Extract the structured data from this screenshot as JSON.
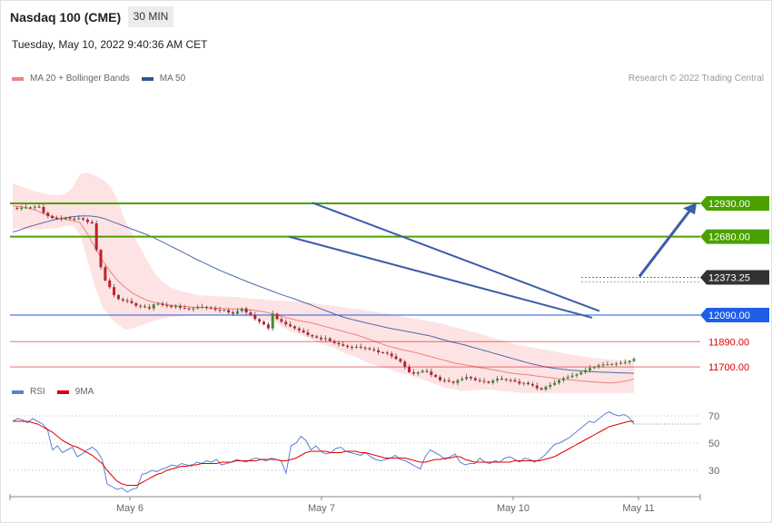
{
  "header": {
    "title": "Nasdaq 100 (CME)",
    "timeframe": "30 MIN",
    "datetime": "Tuesday, May 10, 2022 9:40:36 AM CET",
    "credit": "Research © 2022 Trading Central"
  },
  "legend_main": [
    {
      "label": "MA 20 + Bollinger Bands",
      "color": "#f08080"
    },
    {
      "label": "MA 50",
      "color": "#2f5597"
    }
  ],
  "legend_rsi": [
    {
      "label": "RSI",
      "color": "#5b7fd6"
    },
    {
      "label": "9MA",
      "color": "#e00000"
    }
  ],
  "chart_data": {
    "type": "candlestick",
    "price_range": [
      11580,
      12980
    ],
    "x_ticks": [
      "May 6",
      "May 7",
      "May 10",
      "May 11"
    ],
    "levels": [
      {
        "value": 12930.0,
        "label": "12930.00",
        "kind": "resistance",
        "color": "#4aa100"
      },
      {
        "value": 12680.0,
        "label": "12680.00",
        "kind": "resistance",
        "color": "#4aa100"
      },
      {
        "value": 12373.25,
        "label": "12373.25",
        "kind": "last",
        "color": "#333333"
      },
      {
        "value": 12090.0,
        "label": "12090.00",
        "kind": "pivot",
        "color": "#1e5ee8"
      },
      {
        "value": 11890.0,
        "label": "11890.00",
        "kind": "support",
        "color": "#e00000"
      },
      {
        "value": 11700.0,
        "label": "11700.00",
        "kind": "support",
        "color": "#e00000"
      }
    ],
    "closes": [
      12895,
      12892,
      12896,
      12900,
      12898,
      12905,
      12903,
      12860,
      12835,
      12820,
      12818,
      12812,
      12822,
      12815,
      12812,
      12818,
      12808,
      12790,
      12780,
      12580,
      12450,
      12350,
      12300,
      12240,
      12210,
      12200,
      12195,
      12180,
      12160,
      12155,
      12150,
      12140,
      12170,
      12175,
      12165,
      12160,
      12150,
      12158,
      12145,
      12140,
      12135,
      12140,
      12150,
      12152,
      12145,
      12140,
      12130,
      12125,
      12128,
      12110,
      12100,
      12120,
      12140,
      12110,
      12092,
      12060,
      12040,
      12020,
      11990,
      12100,
      12060,
      12040,
      12020,
      12005,
      11990,
      11975,
      11960,
      11940,
      11930,
      11920,
      11908,
      11915,
      11895,
      11880,
      11870,
      11860,
      11850,
      11845,
      11852,
      11846,
      11840,
      11832,
      11825,
      11810,
      11808,
      11800,
      11780,
      11760,
      11740,
      11700,
      11660,
      11650,
      11660,
      11670,
      11665,
      11640,
      11625,
      11600,
      11598,
      11590,
      11580,
      11600,
      11610,
      11625,
      11615,
      11600,
      11595,
      11590,
      11580,
      11598,
      11612,
      11608,
      11602,
      11600,
      11590,
      11575,
      11580,
      11570,
      11560,
      11540,
      11530,
      11550,
      11565,
      11580,
      11600,
      11615,
      11625,
      11635,
      11645,
      11660,
      11675,
      11692,
      11700,
      11712,
      11718,
      11720,
      11722,
      11725,
      11730,
      11735,
      11745,
      11760
    ],
    "ma20": [
      12910,
      12905,
      12895,
      12880,
      12855,
      12835,
      12820,
      12810,
      12800,
      12785,
      12700,
      12600,
      12500,
      12420,
      12350,
      12300,
      12255,
      12225,
      12200,
      12185,
      12175,
      12165,
      12160,
      12155,
      12150,
      12148,
      12145,
      12143,
      12140,
      12138,
      12135,
      12130,
      12128,
      12120,
      12110,
      12095,
      12080,
      12065,
      12050,
      12040,
      12030,
      12015,
      12000,
      11985,
      11970,
      11955,
      11940,
      11920,
      11900,
      11880,
      11860,
      11845,
      11830,
      11818,
      11805,
      11790,
      11775,
      11760,
      11745,
      11730,
      11720,
      11710,
      11700,
      11690,
      11680,
      11670,
      11660,
      11650,
      11645,
      11640,
      11632,
      11625,
      11618,
      11610,
      11605,
      11600,
      11595,
      11590,
      11585,
      11582,
      11580,
      11585,
      11595,
      11610
    ],
    "bb_upper": [
      13080,
      13060,
      13040,
      13020,
      13005,
      12995,
      12990,
      13000,
      13050,
      13150,
      13160,
      13140,
      13110,
      13060,
      12960,
      12800,
      12700,
      12600,
      12500,
      12400,
      12340,
      12300,
      12280,
      12262,
      12250,
      12240,
      12235,
      12232,
      12230,
      12228,
      12226,
      12220,
      12215,
      12210,
      12205,
      12200,
      12200,
      12195,
      12190,
      12185,
      12180,
      12170,
      12165,
      12160,
      12150,
      12140,
      12135,
      12125,
      12118,
      12110,
      12100,
      12090,
      12080,
      12070,
      12060,
      12050,
      12040,
      12030,
      12015,
      12000,
      11985,
      11970,
      11955,
      11940,
      11920,
      11905,
      11890,
      11875,
      11860,
      11850,
      11840,
      11830,
      11820,
      11810,
      11800,
      11790,
      11780,
      11770,
      11765,
      11760,
      11755,
      11752,
      11750,
      11748
    ],
    "bb_lower": [
      12740,
      12738,
      12736,
      12735,
      12736,
      12738,
      12745,
      12760,
      12760,
      12700,
      12500,
      12300,
      12150,
      12070,
      12020,
      11980,
      11990,
      12010,
      12030,
      12050,
      12065,
      12075,
      12080,
      12085,
      12088,
      12090,
      12092,
      12090,
      12088,
      12085,
      12080,
      12075,
      12070,
      12060,
      12050,
      12040,
      12000,
      11970,
      11950,
      11930,
      11910,
      11880,
      11860,
      11840,
      11810,
      11790,
      11770,
      11740,
      11720,
      11700,
      11690,
      11670,
      11650,
      11640,
      11620,
      11600,
      11580,
      11560,
      11540,
      11530,
      11520,
      11520,
      11525,
      11530,
      11528,
      11520,
      11515,
      11510,
      11505,
      11505,
      11505,
      11505,
      11505,
      11505,
      11505,
      11505,
      11505,
      11505,
      11505,
      11505,
      11505,
      11505,
      11505,
      11505
    ],
    "ma50": [
      12715,
      12730,
      12750,
      12765,
      12780,
      12795,
      12808,
      12818,
      12826,
      12832,
      12836,
      12835,
      12828,
      12815,
      12795,
      12775,
      12755,
      12735,
      12715,
      12695,
      12672,
      12645,
      12618,
      12592,
      12565,
      12538,
      12510,
      12485,
      12460,
      12435,
      12412,
      12390,
      12368,
      12346,
      12325,
      12305,
      12285,
      12265,
      12245,
      12228,
      12210,
      12190,
      12172,
      12150,
      12130,
      12110,
      12090,
      12072,
      12058,
      12045,
      12032,
      12020,
      12008,
      11995,
      11985,
      11975,
      11965,
      11955,
      11945,
      11935,
      11920,
      11905,
      11890,
      11878,
      11865,
      11850,
      11835,
      11820,
      11805,
      11790,
      11775,
      11760,
      11745,
      11730,
      11718,
      11705,
      11695,
      11688,
      11682,
      11676,
      11672,
      11668,
      11665,
      11662,
      11660,
      11658,
      11656,
      11654,
      11652
    ],
    "rsi": {
      "levels": [
        70,
        50,
        30
      ],
      "range": [
        12,
        79
      ],
      "rsi": [
        66,
        68,
        67,
        65,
        68,
        66,
        64,
        60,
        45,
        48,
        43,
        45,
        47,
        40,
        42,
        45,
        47,
        44,
        38,
        20,
        18,
        16,
        17,
        14,
        16,
        17,
        27,
        28,
        30,
        29,
        31,
        32,
        34,
        33,
        35,
        34,
        33,
        36,
        35,
        37,
        36,
        38,
        34,
        35,
        36,
        38,
        37,
        36,
        38,
        39,
        38,
        37,
        39,
        38,
        37,
        28,
        48,
        50,
        55,
        52,
        45,
        48,
        44,
        42,
        43,
        46,
        47,
        44,
        43,
        42,
        41,
        43,
        40,
        38,
        37,
        38,
        39,
        41,
        38,
        37,
        35,
        33,
        31,
        40,
        45,
        43,
        41,
        38,
        40,
        42,
        36,
        34,
        35,
        35,
        39,
        36,
        35,
        37,
        36,
        39,
        40,
        38,
        36,
        39,
        38,
        36,
        38,
        41,
        45,
        49,
        50,
        52,
        54,
        57,
        60,
        63,
        66,
        65,
        68,
        71,
        73,
        71,
        70,
        71,
        69,
        64
      ],
      "ma9": [
        66,
        66,
        66,
        66,
        65,
        64,
        62,
        60,
        58,
        55,
        52,
        50,
        48,
        47,
        45,
        43,
        41,
        38,
        35,
        30,
        26,
        22,
        20,
        19,
        19,
        19,
        21,
        23,
        25,
        27,
        28,
        30,
        31,
        32,
        33,
        33,
        34,
        34,
        35,
        35,
        35,
        35,
        36,
        36,
        36,
        37,
        37,
        37,
        37,
        37,
        38,
        38,
        38,
        38,
        37,
        37,
        38,
        39,
        41,
        43,
        44,
        44,
        44,
        44,
        43,
        43,
        43,
        44,
        44,
        44,
        43,
        43,
        42,
        41,
        40,
        39,
        39,
        39,
        39,
        39,
        38,
        37,
        36,
        36,
        37,
        38,
        38,
        39,
        39,
        40,
        40,
        38,
        37,
        36,
        36,
        36,
        36,
        36,
        36,
        36,
        36,
        37,
        37,
        37,
        37,
        37,
        37,
        38,
        39,
        40,
        42,
        44,
        46,
        48,
        50,
        52,
        54,
        56,
        58,
        60,
        62,
        63,
        64,
        65,
        66,
        66
      ]
    }
  }
}
